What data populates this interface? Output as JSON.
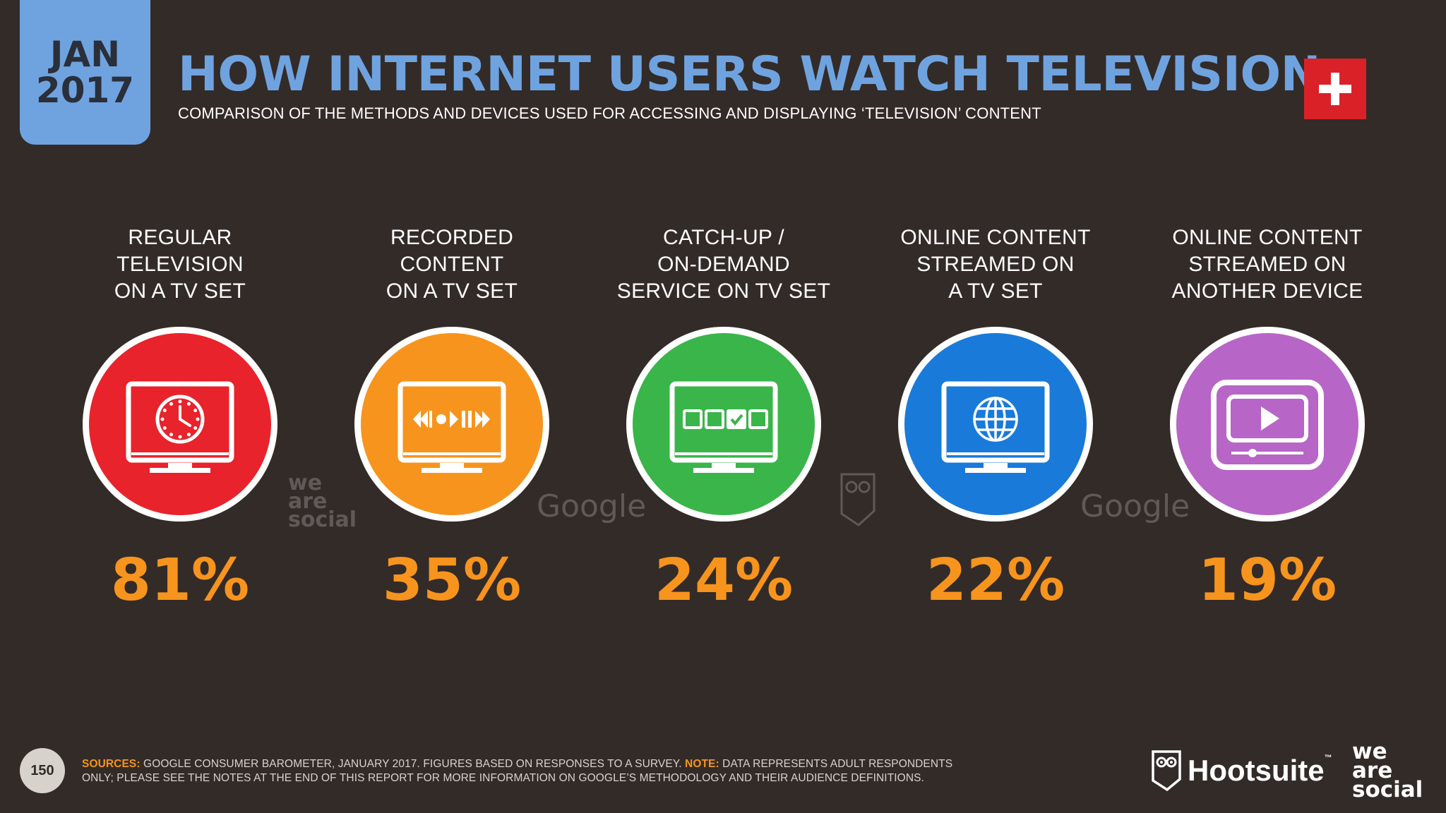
{
  "header": {
    "date_month": "JAN",
    "date_year": "2017",
    "title": "HOW INTERNET USERS WATCH TELEVISION",
    "subtitle": "COMPARISON OF THE METHODS AND DEVICES USED FOR ACCESSING AND DISPLAYING ‘TELEVISION’ CONTENT",
    "flag": "switzerland-flag"
  },
  "categories": [
    {
      "label_lines": [
        "REGULAR",
        "TELEVISION",
        "ON A TV SET"
      ],
      "value": "81%",
      "color": "#e8232b",
      "icon": "tv-clock-icon"
    },
    {
      "label_lines": [
        "RECORDED",
        "CONTENT",
        "ON A TV SET"
      ],
      "value": "35%",
      "color": "#f7941d",
      "icon": "tv-playback-controls-icon"
    },
    {
      "label_lines": [
        "CATCH-UP /",
        "ON-DEMAND",
        "SERVICE ON TV SET"
      ],
      "value": "24%",
      "color": "#39b54a",
      "icon": "tv-selection-boxes-icon"
    },
    {
      "label_lines": [
        "ONLINE CONTENT",
        "STREAMED ON",
        "A TV SET"
      ],
      "value": "22%",
      "color": "#1a7ad9",
      "icon": "tv-globe-icon"
    },
    {
      "label_lines": [
        "ONLINE CONTENT",
        "STREAMED ON",
        "ANOTHER DEVICE"
      ],
      "value": "19%",
      "color": "#b765c6",
      "icon": "video-player-icon"
    }
  ],
  "watermarks": {
    "was_line1": "we",
    "was_line2": "are",
    "was_line3": "social",
    "google_1": "Google",
    "google_2": "Google",
    "owl": "hootsuite-owl-icon"
  },
  "footer": {
    "page_number": "150",
    "sources_label": "SOURCES:",
    "sources_text": "GOOGLE CONSUMER BAROMETER, JANUARY 2017. FIGURES BASED ON RESPONSES TO A SURVEY.",
    "note_label": "NOTE:",
    "note_text": "DATA REPRESENTS ADULT RESPONDENTS ONLY; PLEASE SEE THE NOTES AT THE END OF THIS REPORT FOR MORE INFORMATION ON GOOGLE’S METHODOLOGY AND THEIR AUDIENCE DEFINITIONS.",
    "hootsuite_name": "Hootsuite",
    "hootsuite_tm": "™",
    "was_line1": "we",
    "was_line2": "are",
    "was_line3": "social"
  }
}
